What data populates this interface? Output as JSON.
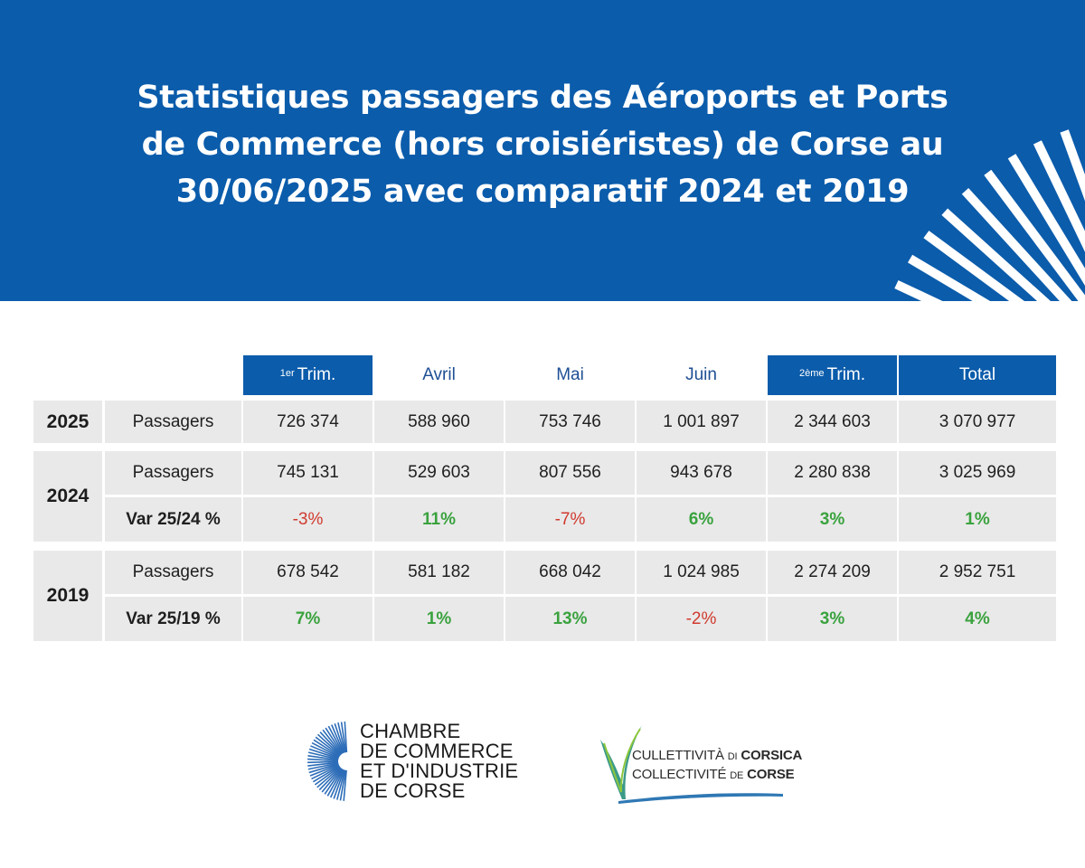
{
  "header": {
    "title_lines": [
      "Statistiques passagers des Aéroports et Ports",
      "de Commerce (hors croisiéristes) de Corse au",
      "30/06/2025 avec comparatif 2024 et 2019"
    ]
  },
  "colors": {
    "brand_blue": "#0b5cab",
    "negative": "#d03a2e",
    "positive": "#3aa23e",
    "cell_bg": "#e9e9e9"
  },
  "table": {
    "columns": [
      {
        "sup": "1er",
        "label": "Trim."
      },
      {
        "sup": "",
        "label": "Avril"
      },
      {
        "sup": "",
        "label": "Mai"
      },
      {
        "sup": "",
        "label": "Juin"
      },
      {
        "sup": "2ème",
        "label": "Trim."
      },
      {
        "sup": "",
        "label": "Total"
      }
    ],
    "y2025": {
      "year": "2025",
      "label": "Passagers",
      "values": [
        "726 374",
        "588 960",
        "753 746",
        "1 001 897",
        "2 344 603",
        "3 070 977"
      ]
    },
    "y2024": {
      "year": "2024",
      "label": "Passagers",
      "values": [
        "745 131",
        "529 603",
        "807 556",
        "943 678",
        "2 280 838",
        "3 025 969"
      ],
      "var_label": "Var 25/24 %",
      "var_values": [
        "-3%",
        "11%",
        "-7%",
        "6%",
        "3%",
        "1%"
      ]
    },
    "y2019": {
      "year": "2019",
      "label": "Passagers",
      "values": [
        "678 542",
        "581 182",
        "668 042",
        "1 024 985",
        "2 274 209",
        "2 952 751"
      ],
      "var_label": "Var 25/19 %",
      "var_values": [
        "7%",
        "1%",
        "13%",
        "-2%",
        "3%",
        "4%"
      ]
    }
  },
  "logos": {
    "cci": [
      "CHAMBRE",
      "DE COMMERCE",
      "ET D'INDUSTRIE",
      "DE CORSE"
    ],
    "collectivite": {
      "line1_a": "CULLETTIVITÀ",
      "line1_b": "DI",
      "line1_c": "CORSICA",
      "line2_a": "COLLECTIVITÉ",
      "line2_b": "DE",
      "line2_c": "CORSE"
    }
  }
}
